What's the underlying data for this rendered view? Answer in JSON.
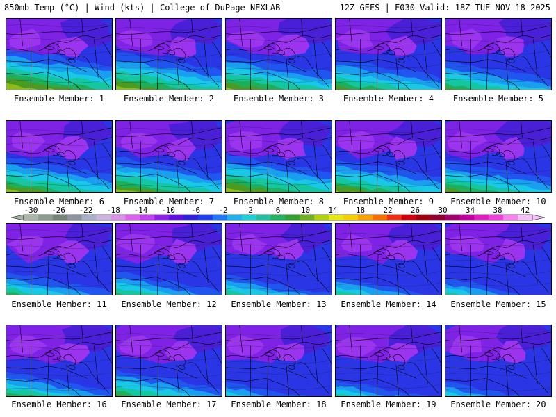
{
  "header": {
    "left": "850mb Temp (°C) | Wind (kts) | College of DuPage NEXLAB",
    "right": "12Z GEFS | F030 Valid: 18Z TUE NOV 18 2025"
  },
  "members": [
    {
      "label": "Ensemble Member: 1",
      "warmth": 1.0
    },
    {
      "label": "Ensemble Member: 2",
      "warmth": 0.9
    },
    {
      "label": "Ensemble Member: 3",
      "warmth": 0.85
    },
    {
      "label": "Ensemble Member: 4",
      "warmth": 0.75
    },
    {
      "label": "Ensemble Member: 5",
      "warmth": 0.7
    },
    {
      "label": "Ensemble Member: 6",
      "warmth": 0.85
    },
    {
      "label": "Ensemble Member: 7",
      "warmth": 0.85
    },
    {
      "label": "Ensemble Member: 8",
      "warmth": 0.9
    },
    {
      "label": "Ensemble Member: 9",
      "warmth": 0.8
    },
    {
      "label": "Ensemble Member: 10",
      "warmth": 0.75
    },
    {
      "label": "Ensemble Member: 11",
      "warmth": 0.55
    },
    {
      "label": "Ensemble Member: 12",
      "warmth": 0.55
    },
    {
      "label": "Ensemble Member: 13",
      "warmth": 0.5
    },
    {
      "label": "Ensemble Member: 14",
      "warmth": 0.45
    },
    {
      "label": "Ensemble Member: 15",
      "warmth": 0.4
    },
    {
      "label": "Ensemble Member: 16",
      "warmth": 0.6
    },
    {
      "label": "Ensemble Member: 17",
      "warmth": 0.65
    },
    {
      "label": "Ensemble Member: 18",
      "warmth": 0.35
    },
    {
      "label": "Ensemble Member: 19",
      "warmth": 0.4
    },
    {
      "label": "Ensemble Member: 20",
      "warmth": 0.35
    }
  ],
  "colorbar": {
    "ticks": [
      "-30",
      "-26",
      "-22",
      "-18",
      "-14",
      "-10",
      "-6",
      "-2",
      "2",
      "6",
      "10",
      "14",
      "18",
      "22",
      "26",
      "30",
      "34",
      "38",
      "42"
    ],
    "colors": [
      "#a8b4a8",
      "#8c9c8c",
      "#748474",
      "#8c94a0",
      "#a8b0c8",
      "#c8b4dc",
      "#d890e8",
      "#e060f0",
      "#c040f0",
      "#9020e8",
      "#6010e0",
      "#3020d8",
      "#2040f0",
      "#2078f8",
      "#20b0f0",
      "#20d0d8",
      "#20c0a0",
      "#20b060",
      "#30a030",
      "#70b020",
      "#b0d010",
      "#e8e810",
      "#f8d000",
      "#f8a000",
      "#f87000",
      "#f03010",
      "#d00010",
      "#a00010",
      "#900030",
      "#a00070",
      "#c000a0",
      "#e020c0",
      "#f040e0",
      "#f880f0",
      "#f8c0f8"
    ]
  },
  "palette": {
    "purple": "#7e22e6",
    "violet": "#9a34ee",
    "indigo": "#4a1fd8",
    "blue": "#2a36e6",
    "mid_blue": "#1f5cf0",
    "light_blue": "#1a9ff0",
    "cyan": "#18c8e6",
    "teal": "#14c7a0",
    "green": "#1fae5a",
    "dark_green": "#4b9a22",
    "yellow_green": "#8bbd14"
  }
}
